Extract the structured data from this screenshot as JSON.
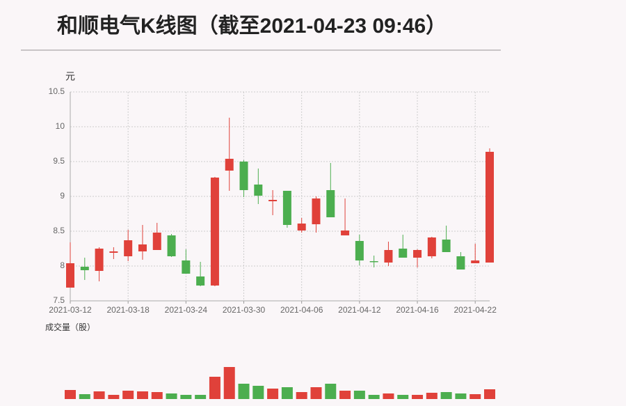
{
  "chart_data": {
    "type": "candlestick",
    "title": "和顺电气K线图（截至2021-04-23 09:46）",
    "y_label": "元",
    "volume_label": "成交量（股）",
    "x": [
      "2021-03-12",
      null,
      null,
      null,
      "2021-03-18",
      null,
      null,
      null,
      "2021-03-24",
      null,
      null,
      null,
      "2021-03-30",
      null,
      null,
      null,
      "2021-04-06",
      null,
      null,
      null,
      "2021-04-12",
      null,
      null,
      null,
      "2021-04-16",
      null,
      null,
      null,
      "2021-04-22",
      null
    ],
    "open": [
      7.69,
      7.99,
      7.93,
      8.19,
      8.14,
      8.21,
      8.23,
      8.44,
      8.08,
      7.85,
      7.72,
      9.37,
      9.5,
      9.17,
      8.93,
      9.08,
      8.51,
      8.6,
      9.09,
      8.44,
      8.36,
      8.07,
      8.05,
      8.25,
      8.12,
      8.14,
      8.38,
      8.14,
      8.04,
      8.05
    ],
    "high": [
      8.34,
      8.12,
      8.27,
      8.27,
      8.52,
      8.59,
      8.62,
      8.46,
      8.24,
      8.06,
      9.28,
      10.13,
      9.52,
      9.4,
      9.09,
      9.08,
      8.69,
      9.0,
      9.48,
      8.97,
      8.45,
      8.15,
      8.35,
      8.45,
      8.24,
      8.42,
      8.58,
      8.2,
      8.32,
      9.69
    ],
    "low": [
      7.69,
      7.8,
      7.78,
      8.1,
      8.07,
      8.09,
      8.23,
      8.13,
      7.89,
      7.71,
      7.71,
      9.08,
      8.99,
      8.89,
      8.73,
      8.55,
      8.48,
      8.48,
      8.7,
      8.44,
      8.01,
      7.98,
      8.0,
      8.12,
      7.98,
      8.11,
      8.2,
      7.95,
      8.04,
      8.05
    ],
    "close": [
      8.04,
      7.94,
      8.25,
      8.21,
      8.37,
      8.31,
      8.48,
      8.14,
      7.89,
      7.72,
      9.27,
      9.54,
      9.09,
      9.01,
      8.95,
      8.59,
      8.61,
      8.97,
      8.7,
      8.51,
      8.08,
      8.06,
      8.23,
      8.12,
      8.23,
      8.41,
      8.2,
      7.95,
      8.08,
      9.64
    ],
    "volume": [
      13,
      7,
      11,
      6,
      12,
      11,
      10,
      8,
      6,
      6,
      32,
      46,
      22,
      19,
      15,
      17,
      10,
      17,
      22,
      12,
      12,
      6,
      8,
      6,
      6,
      9,
      10,
      8,
      7,
      14
    ],
    "ylim": [
      7.5,
      10.5
    ],
    "yticks": [
      7.5,
      8,
      8.5,
      9,
      9.5,
      10,
      10.5
    ],
    "grid": true,
    "up_color": "#e0413a",
    "down_color": "#4cae4f"
  }
}
